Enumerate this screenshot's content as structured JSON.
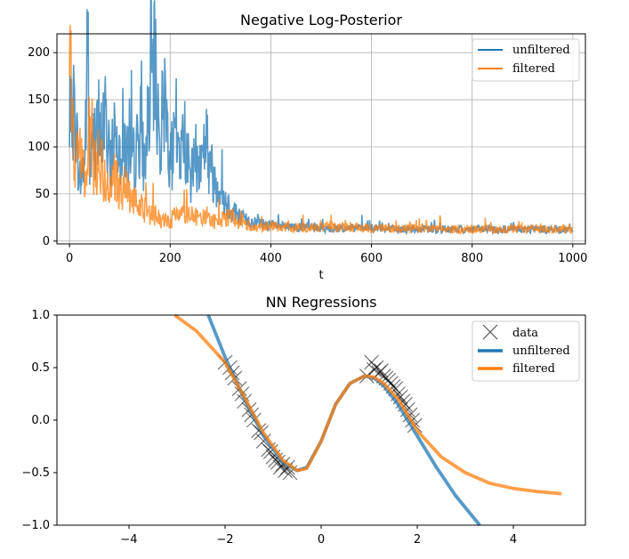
{
  "chart_data": [
    {
      "type": "line",
      "title": "Negative Log-Posterior",
      "xlabel": "t",
      "ylabel": "",
      "xlim": [
        -25,
        1025
      ],
      "ylim": [
        -3,
        220
      ],
      "grid": true,
      "legend_position": "top-right",
      "xticks": [
        0,
        200,
        400,
        600,
        800,
        1000
      ],
      "yticks": [
        0,
        50,
        100,
        150,
        200
      ],
      "series": [
        {
          "name": "unfiltered",
          "color": "#1f77b4",
          "t": [
            0,
            10,
            20,
            30,
            37,
            40,
            50,
            60,
            70,
            80,
            90,
            100,
            110,
            120,
            130,
            140,
            150,
            160,
            170,
            180,
            190,
            200,
            210,
            220,
            230,
            240,
            250,
            260,
            270,
            280,
            290,
            300,
            310,
            320,
            330,
            340,
            350,
            360,
            380,
            400,
            420,
            440,
            460,
            480,
            500,
            550,
            600,
            650,
            700,
            750,
            800,
            850,
            900,
            950,
            1000
          ],
          "values": [
            100,
            140,
            60,
            80,
            210,
            70,
            110,
            95,
            130,
            75,
            120,
            90,
            100,
            80,
            85,
            110,
            75,
            150,
            175,
            95,
            150,
            80,
            100,
            90,
            105,
            60,
            85,
            75,
            110,
            70,
            60,
            55,
            40,
            35,
            30,
            25,
            22,
            20,
            18,
            16,
            15,
            14,
            14,
            14,
            13,
            13,
            13,
            12,
            12,
            12,
            12,
            12,
            12,
            12,
            12
          ]
        },
        {
          "name": "filtered",
          "color": "#ff7f0e",
          "t": [
            0,
            5,
            10,
            20,
            30,
            40,
            50,
            60,
            70,
            80,
            90,
            100,
            120,
            140,
            160,
            180,
            200,
            220,
            240,
            260,
            280,
            300,
            320,
            340,
            360,
            380,
            400,
            450,
            500,
            550,
            600,
            650,
            700,
            750,
            800,
            850,
            900,
            950,
            1000
          ],
          "values": [
            175,
            140,
            80,
            90,
            60,
            110,
            70,
            85,
            60,
            55,
            65,
            50,
            45,
            35,
            28,
            22,
            20,
            30,
            25,
            22,
            20,
            22,
            25,
            18,
            16,
            15,
            15,
            14,
            14,
            14,
            13,
            13,
            13,
            12,
            12,
            12,
            12,
            12,
            11
          ]
        }
      ]
    },
    {
      "type": "line",
      "title": "NN Regressions",
      "xlabel": "",
      "ylabel": "",
      "xlim": [
        -5.5,
        5.5
      ],
      "ylim": [
        -1.0,
        1.0
      ],
      "grid": false,
      "legend_position": "top-right",
      "xticks": [
        -4,
        -2,
        0,
        2,
        4
      ],
      "xtick_labels": [
        "−4",
        "−2",
        "0",
        "2",
        "4"
      ],
      "yticks": [
        -1.0,
        -0.5,
        0.0,
        0.5,
        1.0
      ],
      "ytick_labels": [
        "−1.0",
        "−0.5",
        "0.0",
        "0.5",
        "1.0"
      ],
      "data_points": {
        "name": "data",
        "color": "#000000",
        "x": [
          -2.0,
          -1.9,
          -1.85,
          -1.8,
          -1.7,
          -1.65,
          -1.6,
          -1.5,
          -1.45,
          -1.4,
          -1.3,
          -1.25,
          -1.2,
          -1.1,
          -1.05,
          -1.0,
          -0.95,
          -0.9,
          -0.85,
          -0.8,
          -0.75,
          -0.7,
          -0.65,
          0.95,
          1.05,
          1.1,
          1.15,
          1.2,
          1.25,
          1.3,
          1.35,
          1.4,
          1.45,
          1.5,
          1.55,
          1.6,
          1.65,
          1.7,
          1.75,
          1.8,
          1.85,
          1.9,
          1.95
        ],
        "y": [
          0.55,
          0.5,
          0.45,
          0.4,
          0.3,
          0.25,
          0.18,
          0.1,
          0.05,
          0.0,
          -0.1,
          -0.12,
          -0.2,
          -0.28,
          -0.3,
          -0.35,
          -0.38,
          -0.4,
          -0.45,
          -0.42,
          -0.48,
          -0.45,
          -0.5,
          0.42,
          0.55,
          0.48,
          0.5,
          0.45,
          0.47,
          0.42,
          0.4,
          0.38,
          0.35,
          0.32,
          0.3,
          0.25,
          0.22,
          0.18,
          0.15,
          0.1,
          0.05,
          0.0,
          -0.05
        ]
      },
      "series": [
        {
          "name": "unfiltered",
          "color": "#1f77b4",
          "x": [
            -2.35,
            -2.0,
            -1.6,
            -1.2,
            -0.8,
            -0.5,
            -0.3,
            0.0,
            0.3,
            0.6,
            0.9,
            1.1,
            1.3,
            1.6,
            2.0,
            2.4,
            2.8,
            3.3
          ],
          "y": [
            1.0,
            0.6,
            0.2,
            -0.15,
            -0.4,
            -0.48,
            -0.45,
            -0.2,
            0.15,
            0.35,
            0.42,
            0.4,
            0.33,
            0.15,
            -0.15,
            -0.45,
            -0.72,
            -1.0
          ]
        },
        {
          "name": "filtered",
          "color": "#ff7f0e",
          "x": [
            -3.05,
            -2.6,
            -2.0,
            -1.6,
            -1.2,
            -0.8,
            -0.5,
            -0.3,
            0.0,
            0.3,
            0.6,
            0.9,
            1.1,
            1.3,
            1.6,
            2.0,
            2.5,
            3.0,
            3.5,
            4.0,
            4.5,
            5.0
          ],
          "y": [
            1.0,
            0.85,
            0.55,
            0.22,
            -0.12,
            -0.38,
            -0.48,
            -0.46,
            -0.2,
            0.15,
            0.35,
            0.42,
            0.41,
            0.35,
            0.2,
            -0.1,
            -0.35,
            -0.5,
            -0.6,
            -0.65,
            -0.68,
            -0.7
          ]
        }
      ]
    }
  ]
}
